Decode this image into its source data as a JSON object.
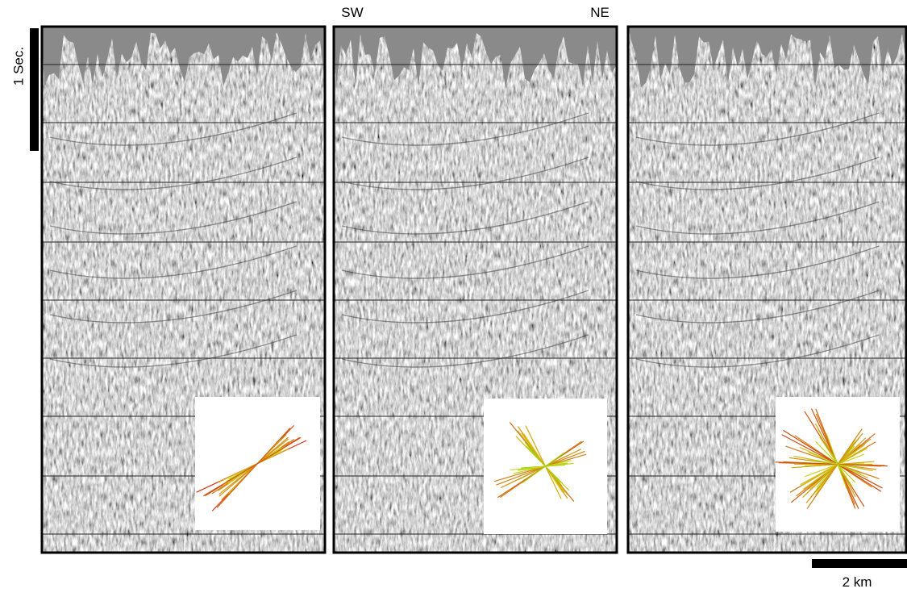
{
  "vertical_scale": {
    "label": "1 Sec."
  },
  "orientation": {
    "left": "SW",
    "right": "NE"
  },
  "horizontal_scale": {
    "label": "2 km"
  }
}
